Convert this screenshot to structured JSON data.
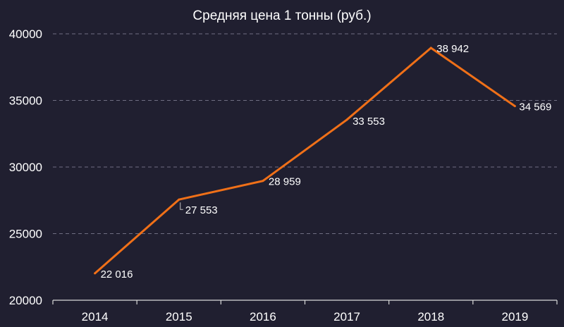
{
  "chart_data": {
    "type": "line",
    "title": "Средняя цена 1 тонны (руб.)",
    "categories": [
      "2014",
      "2015",
      "2016",
      "2017",
      "2018",
      "2019"
    ],
    "series": [
      {
        "values": [
          22016,
          27553,
          28959,
          33553,
          38942,
          34569
        ],
        "labels": [
          "22 016",
          "27 553",
          "28 959",
          "33 553",
          "38 942",
          "34 569"
        ],
        "color": "#f07018"
      }
    ],
    "ylim": [
      20000,
      40000
    ],
    "yticks": [
      "20000",
      "25000",
      "30000",
      "35000",
      "40000"
    ],
    "grid": true,
    "legend": "none"
  }
}
